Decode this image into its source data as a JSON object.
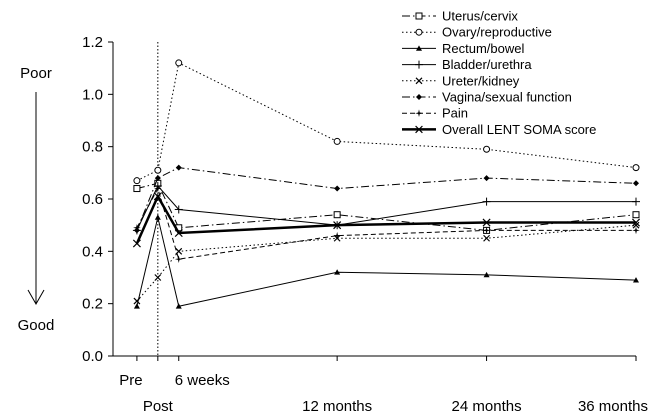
{
  "chart_data": {
    "type": "line",
    "categories": [
      "Pre",
      "Post",
      "6 weeks",
      "12 months",
      "24 months",
      "36 months"
    ],
    "x": [
      -0.35,
      0,
      0.35,
      3,
      5.5,
      8
    ],
    "ylim": [
      0,
      1.2
    ],
    "yticks": [
      0.0,
      0.2,
      0.4,
      0.6,
      0.8,
      1.0,
      1.2
    ],
    "ytick_labels": [
      "0.0",
      "0.2",
      "0.4",
      "0.6",
      "0.8",
      "1.0",
      "1.2"
    ],
    "grid": false,
    "legend_position": "top-right",
    "y_scale_labels": {
      "top": "Poor",
      "bottom": "Good"
    },
    "series": [
      {
        "name": "Uterus/cervix",
        "values": [
          0.64,
          0.66,
          0.49,
          0.54,
          0.48,
          0.54
        ],
        "style": "dashdot",
        "marker": "open-square",
        "width": 1
      },
      {
        "name": "Ovary/reproductive",
        "values": [
          0.67,
          0.71,
          1.12,
          0.82,
          0.79,
          0.72
        ],
        "style": "dotted",
        "marker": "open-circle",
        "width": 1
      },
      {
        "name": "Rectum/bowel",
        "values": [
          0.19,
          0.53,
          0.19,
          0.32,
          0.31,
          0.29
        ],
        "style": "solid",
        "marker": "filled-triangle",
        "width": 1
      },
      {
        "name": "Bladder/urethra",
        "values": [
          0.48,
          0.65,
          0.56,
          0.5,
          0.59,
          0.59
        ],
        "style": "solid",
        "marker": "plus",
        "width": 1
      },
      {
        "name": "Ureter/kidney",
        "values": [
          0.21,
          0.3,
          0.4,
          0.45,
          0.45,
          0.5
        ],
        "style": "dotted",
        "marker": "x",
        "width": 1
      },
      {
        "name": "Vagina/sexual function",
        "values": [
          0.48,
          0.68,
          0.72,
          0.64,
          0.68,
          0.66
        ],
        "style": "dashdot",
        "marker": "filled-diamond",
        "width": 1
      },
      {
        "name": "Pain",
        "values": [
          0.49,
          0.64,
          0.37,
          0.46,
          0.48,
          0.48
        ],
        "style": "dashed",
        "marker": "filled-star",
        "width": 1
      },
      {
        "name": "Overall LENT SOMA score",
        "values": [
          0.43,
          0.61,
          0.47,
          0.5,
          0.51,
          0.51
        ],
        "style": "solid",
        "marker": "x",
        "width": 2.5
      }
    ],
    "reference_line": {
      "x": 0,
      "style": "dotted"
    },
    "colors": {
      "line": "#000000",
      "background": "#ffffff"
    }
  }
}
